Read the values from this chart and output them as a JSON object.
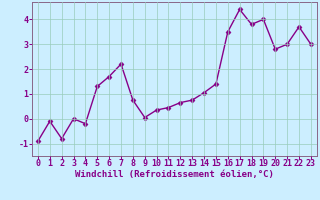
{
  "x": [
    0,
    1,
    2,
    3,
    4,
    5,
    6,
    7,
    8,
    9,
    10,
    11,
    12,
    13,
    14,
    15,
    16,
    17,
    18,
    19,
    20,
    21,
    22,
    23
  ],
  "y": [
    -0.9,
    -0.1,
    -0.8,
    0.0,
    -0.2,
    1.3,
    1.7,
    2.2,
    0.75,
    0.05,
    0.35,
    0.45,
    0.65,
    0.75,
    1.05,
    1.4,
    3.5,
    4.4,
    3.8,
    4.0,
    2.8,
    3.0,
    3.7,
    3.0
  ],
  "line_color": "#880088",
  "marker": "D",
  "marker_size": 2.5,
  "bg_color": "#cceeff",
  "grid_color": "#99ccbb",
  "xlabel": "Windchill (Refroidissement éolien,°C)",
  "xlabel_color": "#880088",
  "tick_color": "#880088",
  "spine_color": "#886688",
  "ylim": [
    -1.5,
    4.7
  ],
  "xlim": [
    -0.5,
    23.5
  ],
  "yticks": [
    -1,
    0,
    1,
    2,
    3,
    4
  ],
  "xticks": [
    0,
    1,
    2,
    3,
    4,
    5,
    6,
    7,
    8,
    9,
    10,
    11,
    12,
    13,
    14,
    15,
    16,
    17,
    18,
    19,
    20,
    21,
    22,
    23
  ],
  "xlabel_fontsize": 6.5,
  "tick_fontsize": 6.0,
  "linewidth": 1.0
}
